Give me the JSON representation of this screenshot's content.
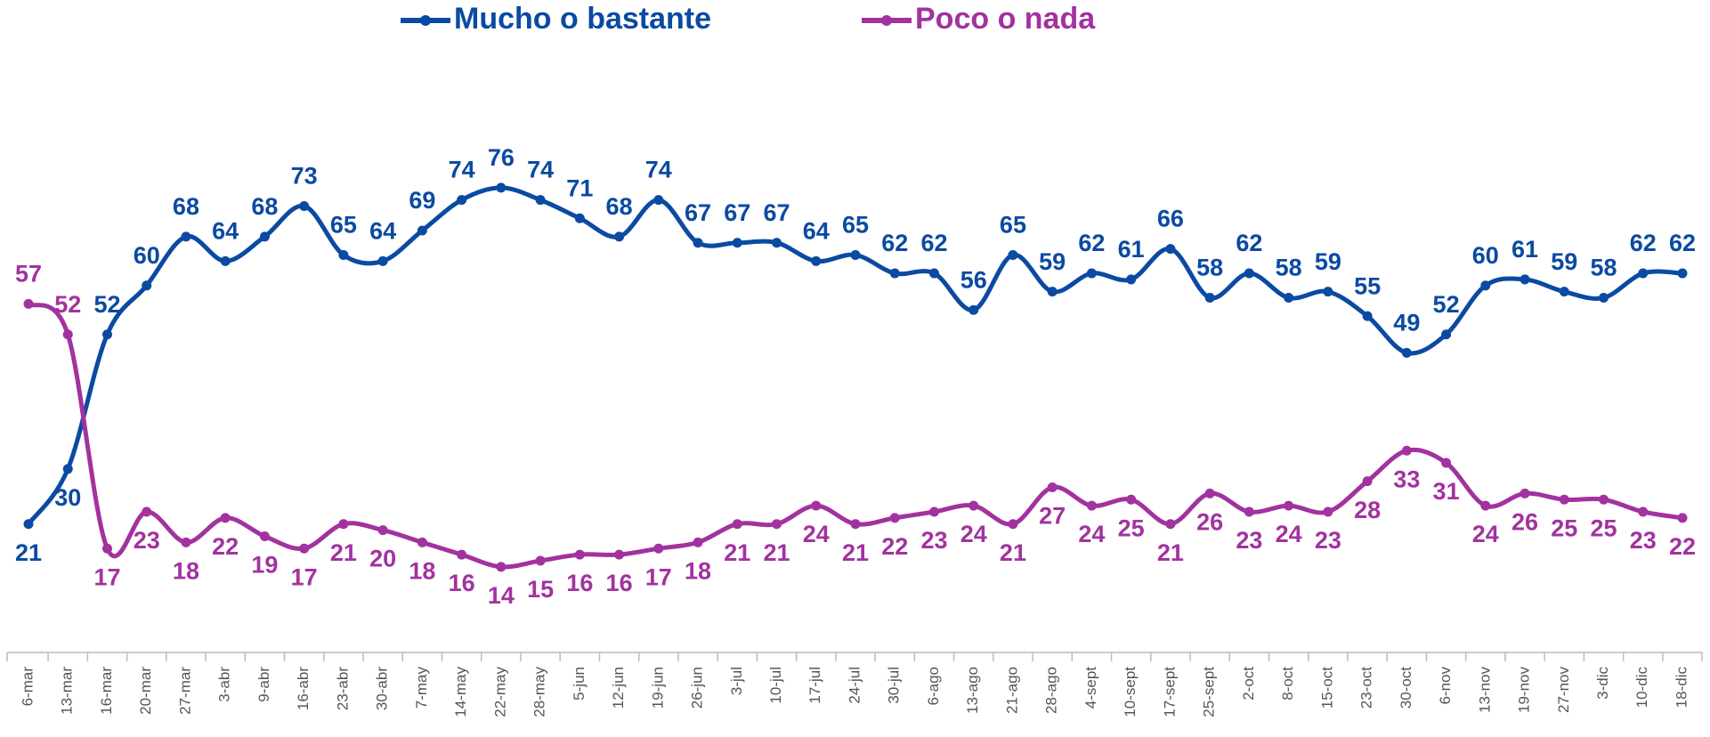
{
  "chart_data": {
    "type": "line",
    "categories": [
      "6-mar",
      "13-mar",
      "16-mar",
      "20-mar",
      "27-mar",
      "3-abr",
      "9-abr",
      "16-abr",
      "23-abr",
      "30-abr",
      "7-may",
      "14-may",
      "22-may",
      "28-may",
      "5-jun",
      "12-jun",
      "19-jun",
      "26-jun",
      "3-jul",
      "10-jul",
      "17-jul",
      "24-jul",
      "30-jul",
      "6-ago",
      "13-ago",
      "21-ago",
      "28-ago",
      "4-sept",
      "10-sept",
      "17-sept",
      "25-sept",
      "2-oct",
      "8-oct",
      "15-oct",
      "23-oct",
      "30-oct",
      "6-nov",
      "13-nov",
      "19-nov",
      "27-nov",
      "3-dic",
      "10-dic",
      "18-dic"
    ],
    "series": [
      {
        "name": "Mucho o bastante",
        "color": "#0b4aa2",
        "values": [
          21,
          30,
          52,
          60,
          68,
          64,
          68,
          73,
          65,
          64,
          69,
          74,
          76,
          74,
          71,
          68,
          74,
          67,
          67,
          67,
          64,
          65,
          62,
          62,
          56,
          65,
          59,
          62,
          61,
          66,
          58,
          62,
          58,
          59,
          55,
          49,
          52,
          60,
          61,
          59,
          58,
          62,
          62
        ]
      },
      {
        "name": "Poco o nada",
        "color": "#a2329f",
        "values": [
          57,
          52,
          17,
          23,
          18,
          22,
          19,
          17,
          21,
          20,
          18,
          16,
          14,
          15,
          16,
          16,
          17,
          18,
          21,
          21,
          24,
          21,
          22,
          23,
          24,
          21,
          27,
          24,
          25,
          21,
          26,
          23,
          24,
          23,
          28,
          33,
          31,
          24,
          26,
          25,
          25,
          23,
          22
        ]
      }
    ],
    "ylim": [
      0,
      100
    ],
    "legend": "top"
  }
}
